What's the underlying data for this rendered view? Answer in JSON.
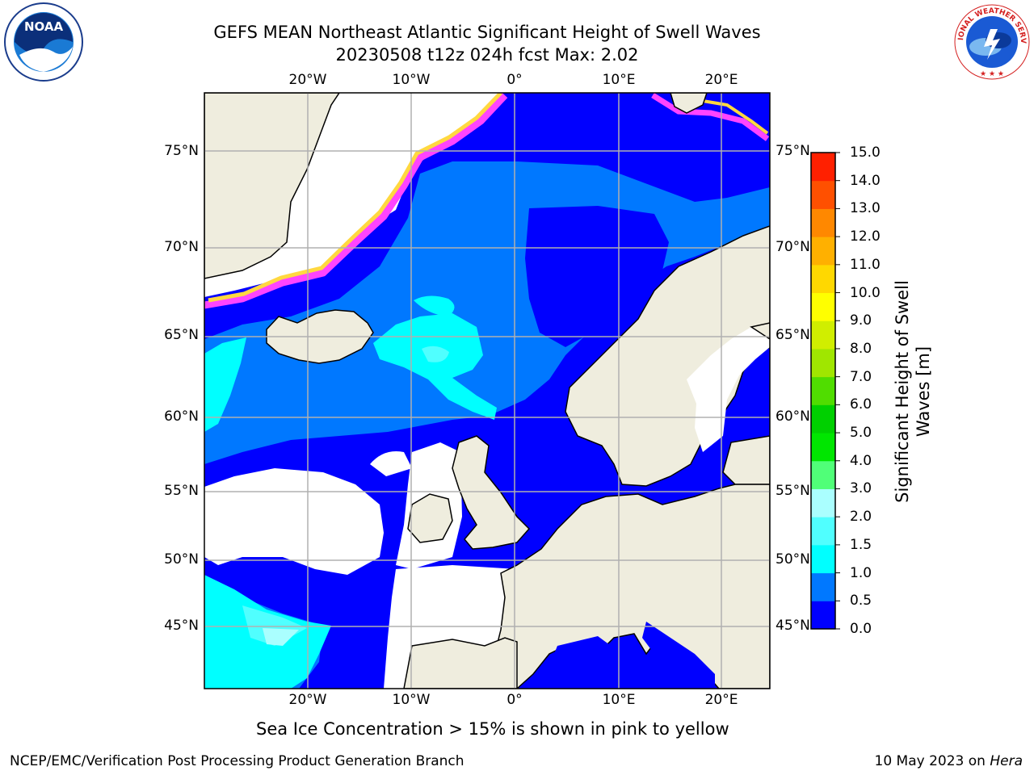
{
  "title_line1": "GEFS MEAN Northeast Atlantic Significant Height of Swell Waves",
  "title_line2": "20230508 t12z 024h fcst   Max: 2.02",
  "lon_labels": [
    "20°W",
    "10°W",
    "0°",
    "10°E",
    "20°E"
  ],
  "lat_labels": [
    "75°N",
    "70°N",
    "65°N",
    "60°N",
    "55°N",
    "50°N",
    "45°N"
  ],
  "colorbar": {
    "title_line1": "Significant Height of Swell",
    "title_line2": "Waves [m]",
    "ticks": [
      "15.0",
      "14.0",
      "13.0",
      "12.0",
      "11.0",
      "10.0",
      "9.0",
      "8.0",
      "7.0",
      "6.0",
      "5.0",
      "4.0",
      "3.0",
      "2.0",
      "1.5",
      "1.0",
      "0.5",
      "0.0"
    ],
    "colors": [
      "#0000ff",
      "#0078ff",
      "#00ffff",
      "#50ffff",
      "#aaffff",
      "#50ff78",
      "#00e600",
      "#00d000",
      "#50dd00",
      "#a0e600",
      "#d0ee00",
      "#ffff00",
      "#ffd800",
      "#ffb000",
      "#ff8800",
      "#ff5000",
      "#ff2000"
    ]
  },
  "map_colors": {
    "land": "#efedde",
    "swell_0_0_5": "#0000ff",
    "swell_0_5_1": "#0078ff",
    "swell_1_1_5": "#00ffff",
    "swell_1_5_2": "#50ffff",
    "swell_2_3": "#aaffff",
    "ice_pink": "#ff44ff",
    "ice_yellow": "#ffd840",
    "grid": "#b0b0b0"
  },
  "footnote": "Sea Ice Concentration > 15% is shown in pink to yellow",
  "credit": "NCEP/EMC/Verification Post Processing Product Generation Branch",
  "date_text": "10 May 2023 on ",
  "date_machine": "Hera",
  "logos": {
    "noaa": "NOAA",
    "nws": "NATIONAL WEATHER SERVICE"
  }
}
